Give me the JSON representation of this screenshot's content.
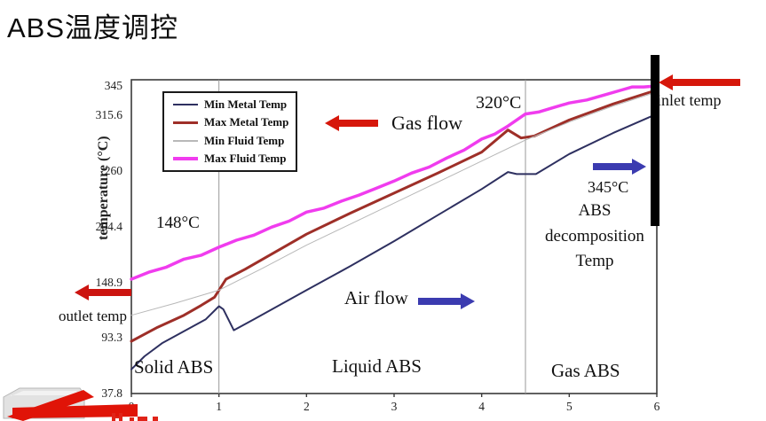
{
  "page": {
    "title": "ABS温度调控",
    "background": "#ffffff"
  },
  "chart_data": {
    "type": "line",
    "title": "",
    "xlabel": "",
    "ylabel": "temperature (°C)",
    "x_axis": {
      "ticks": [
        "0",
        "1",
        "2",
        "3",
        "4",
        "5",
        "6"
      ],
      "range": [
        0,
        6
      ]
    },
    "y_axis": {
      "ticks": [
        "345",
        "315.6",
        "260",
        "204.4",
        "148.9",
        "93.3",
        "37.8"
      ],
      "range": [
        37.8,
        345
      ]
    },
    "gridlines_x": [
      1,
      4.5
    ],
    "grid": "vertical-region-dividers-only",
    "legend_position": "top-left-inside",
    "regions": [
      "Solid ABS",
      "Liquid ABS",
      "Gas ABS"
    ],
    "series": [
      {
        "name": "Min Metal Temp",
        "color": "#2e3060",
        "width": 2,
        "points": [
          [
            0,
            62
          ],
          [
            0.15,
            75
          ],
          [
            0.35,
            88
          ],
          [
            0.6,
            100
          ],
          [
            0.85,
            112
          ],
          [
            1.0,
            125
          ],
          [
            1.05,
            122
          ],
          [
            1.17,
            101
          ],
          [
            1.4,
            112
          ],
          [
            2,
            141
          ],
          [
            2.5,
            165
          ],
          [
            3,
            190
          ],
          [
            3.5,
            216
          ],
          [
            4,
            242
          ],
          [
            4.3,
            259
          ],
          [
            4.4,
            257
          ],
          [
            4.62,
            257
          ],
          [
            5,
            277
          ],
          [
            5.5,
            298
          ],
          [
            6,
            317
          ]
        ]
      },
      {
        "name": "Max Metal Temp",
        "color": "#9e2f28",
        "width": 3,
        "points": [
          [
            0,
            90
          ],
          [
            0.3,
            104
          ],
          [
            0.6,
            116
          ],
          [
            0.8,
            126
          ],
          [
            0.95,
            134
          ],
          [
            1.08,
            152
          ],
          [
            1.3,
            162
          ],
          [
            2,
            197
          ],
          [
            2.5,
            218
          ],
          [
            3,
            238
          ],
          [
            3.5,
            258
          ],
          [
            4,
            279
          ],
          [
            4.3,
            301
          ],
          [
            4.45,
            293
          ],
          [
            4.6,
            295
          ],
          [
            5,
            311
          ],
          [
            5.5,
            327
          ],
          [
            6,
            341
          ]
        ]
      },
      {
        "name": "Min Fluid Temp",
        "color": "#b8b8b8",
        "width": 1,
        "points": [
          [
            0,
            116
          ],
          [
            0.5,
            128
          ],
          [
            1,
            141
          ],
          [
            1.5,
            163
          ],
          [
            2,
            186
          ],
          [
            3,
            228
          ],
          [
            4,
            270
          ],
          [
            4.5,
            291
          ],
          [
            5,
            309
          ],
          [
            5.5,
            325
          ],
          [
            6,
            339
          ]
        ]
      },
      {
        "name": "Max Fluid Temp",
        "color": "#f03cee",
        "width": 3.5,
        "points": [
          [
            0,
            152
          ],
          [
            0.2,
            159
          ],
          [
            0.4,
            164
          ],
          [
            0.6,
            172
          ],
          [
            0.8,
            176
          ],
          [
            1,
            184
          ],
          [
            1.2,
            191
          ],
          [
            1.4,
            196
          ],
          [
            1.6,
            204
          ],
          [
            1.8,
            210
          ],
          [
            2,
            219
          ],
          [
            2.2,
            223
          ],
          [
            2.4,
            230
          ],
          [
            2.6,
            236
          ],
          [
            2.8,
            243
          ],
          [
            3,
            250
          ],
          [
            3.2,
            258
          ],
          [
            3.4,
            264
          ],
          [
            3.6,
            273
          ],
          [
            3.8,
            281
          ],
          [
            4,
            292
          ],
          [
            4.15,
            297
          ],
          [
            4.3,
            305
          ],
          [
            4.5,
            317
          ],
          [
            4.65,
            319
          ],
          [
            4.8,
            323
          ],
          [
            5,
            328
          ],
          [
            5.2,
            331
          ],
          [
            5.4,
            336
          ],
          [
            5.6,
            341
          ],
          [
            5.72,
            344
          ],
          [
            5.85,
            344
          ],
          [
            6,
            345
          ]
        ]
      }
    ]
  },
  "annotations": {
    "gas_flow": "Gas flow",
    "air_flow": "Air flow",
    "inlet_temp": "inlet temp",
    "outlet_temp": "outlet temp",
    "temp_148": "148°C",
    "temp_320": "320°C",
    "temp_345": "345°C",
    "decomposition": [
      "ABS",
      "decomposition",
      "Temp"
    ]
  },
  "colors": {
    "red_arrow": "#d6170b",
    "blue_arrow": "#3b3bb0",
    "decomposition_bar": "#000000"
  }
}
